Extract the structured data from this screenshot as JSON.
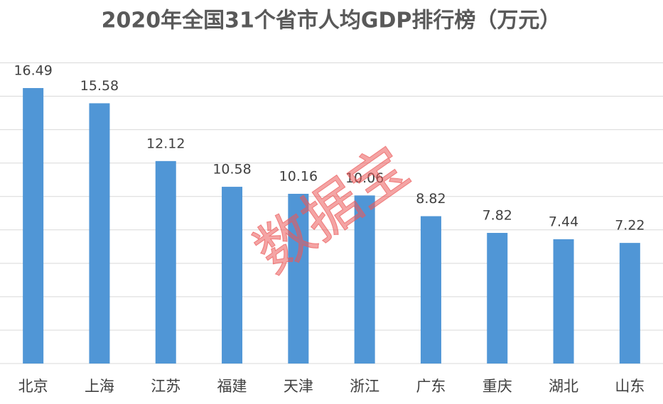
{
  "chart_data": {
    "type": "bar",
    "title": "2020年全国31个省市人均GDP排行榜（万元）",
    "watermark": "数据宝",
    "categories": [
      "北京",
      "上海",
      "江苏",
      "福建",
      "天津",
      "浙江",
      "广东",
      "重庆",
      "湖北",
      "山东"
    ],
    "values": [
      16.49,
      15.58,
      12.12,
      10.58,
      10.16,
      10.06,
      8.82,
      7.82,
      7.44,
      7.22
    ],
    "color": "#5096d6",
    "ylim": [
      0,
      18
    ],
    "yticks": [
      0,
      2,
      4,
      6,
      8,
      10,
      12,
      14,
      16,
      18
    ],
    "grid": true
  }
}
